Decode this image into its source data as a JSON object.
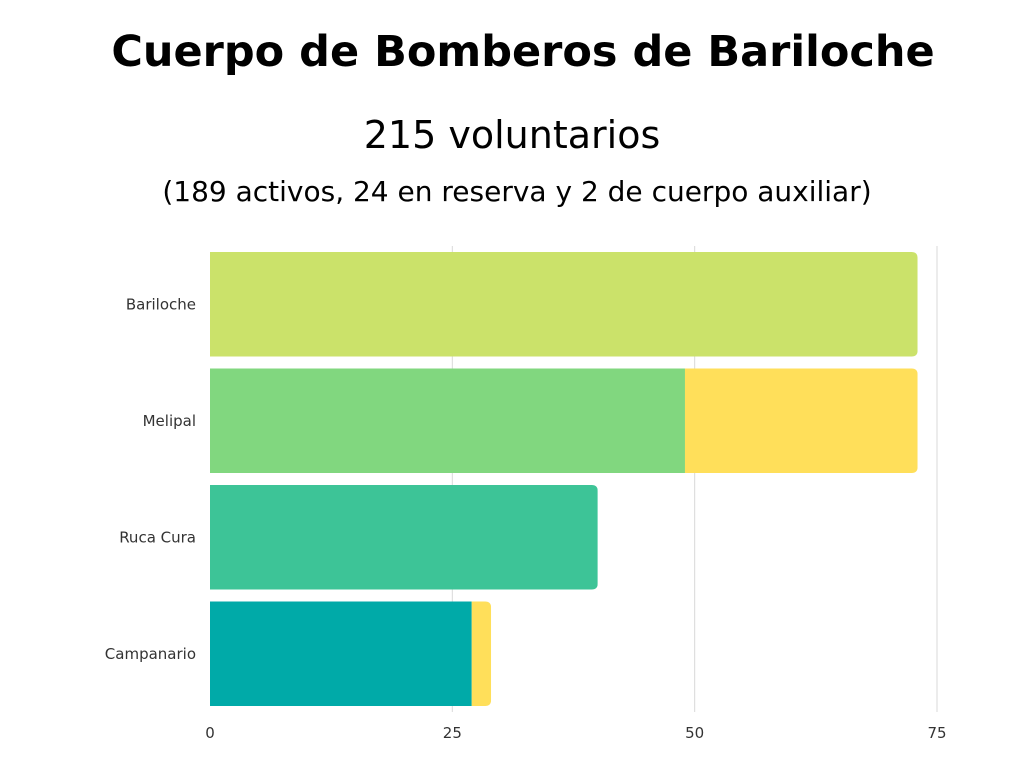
{
  "title": "Cuerpo de Bomberos de Bariloche",
  "subtitle": "215 voluntarios",
  "note": "(189 activos, 24 en reserva y 2 de cuerpo auxiliar)",
  "chart_data": {
    "type": "bar",
    "orientation": "horizontal",
    "stacked": true,
    "title": "",
    "xlabel": "",
    "ylabel": "",
    "categories": [
      "Bariloche",
      "Melipal",
      "Ruca Cura",
      "Campanario"
    ],
    "segments": [
      {
        "values": [
          73,
          49,
          40,
          27
        ],
        "colors": [
          "#cbe26a",
          "#81d77f",
          "#3dc497",
          "#00aaa8"
        ]
      },
      {
        "values": [
          0,
          24,
          0,
          2
        ],
        "colors": [
          "#ffdf5a",
          "#ffdf5a",
          "#ffdf5a",
          "#ffdf5a"
        ]
      }
    ],
    "xlim": [
      0,
      75
    ],
    "x_ticks": [
      "0",
      "25",
      "50",
      "75"
    ],
    "grid": "vertical",
    "legend": "none"
  }
}
